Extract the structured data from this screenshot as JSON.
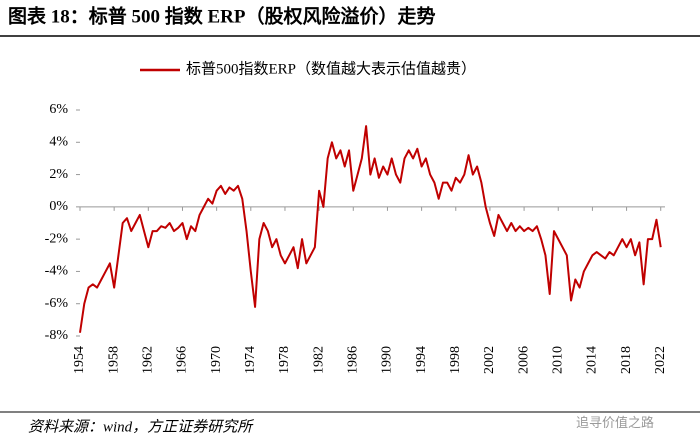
{
  "title": "图表 18：标普 500 指数 ERP（股权风险溢价）走势",
  "source": "资料来源：wind，方正证券研究所",
  "watermark": "追寻价值之路",
  "chart_data": {
    "type": "line",
    "xlim": [
      1954,
      2022.5
    ],
    "xticks": [
      1954,
      1958,
      1962,
      1966,
      1970,
      1974,
      1978,
      1982,
      1986,
      1990,
      1994,
      1998,
      2002,
      2006,
      2010,
      2014,
      2018,
      2022
    ],
    "ylim": [
      -8,
      6
    ],
    "yticks": [
      {
        "value": -8,
        "label": "-8%"
      },
      {
        "value": -6,
        "label": "-6%"
      },
      {
        "value": -4,
        "label": "-4%"
      },
      {
        "value": -2,
        "label": "-2%"
      },
      {
        "value": 0,
        "label": "0%"
      },
      {
        "value": 2,
        "label": "2%"
      },
      {
        "value": 4,
        "label": "4%"
      },
      {
        "value": 6,
        "label": "6%"
      }
    ],
    "x": [
      1954,
      1954.5,
      1955,
      1955.5,
      1956,
      1956.5,
      1957,
      1957.5,
      1958,
      1958.5,
      1959,
      1959.5,
      1960,
      1960.5,
      1961,
      1961.5,
      1962,
      1962.5,
      1963,
      1963.5,
      1964,
      1964.5,
      1965,
      1965.5,
      1966,
      1966.5,
      1967,
      1967.5,
      1968,
      1968.5,
      1969,
      1969.5,
      1970,
      1970.5,
      1971,
      1971.5,
      1972,
      1972.5,
      1973,
      1973.5,
      1974,
      1974.5,
      1975,
      1975.5,
      1976,
      1976.5,
      1977,
      1977.5,
      1978,
      1978.5,
      1979,
      1979.5,
      1980,
      1980.5,
      1981,
      1981.5,
      1982,
      1982.5,
      1983,
      1983.5,
      1984,
      1984.5,
      1985,
      1985.5,
      1986,
      1986.5,
      1987,
      1987.5,
      1988,
      1988.5,
      1989,
      1989.5,
      1990,
      1990.5,
      1991,
      1991.5,
      1992,
      1992.5,
      1993,
      1993.5,
      1994,
      1994.5,
      1995,
      1995.5,
      1996,
      1996.5,
      1997,
      1997.5,
      1998,
      1998.5,
      1999,
      1999.5,
      2000,
      2000.5,
      2001,
      2001.5,
      2002,
      2002.5,
      2003,
      2003.5,
      2004,
      2004.5,
      2005,
      2005.5,
      2006,
      2006.5,
      2007,
      2007.5,
      2008,
      2008.5,
      2009,
      2009.5,
      2010,
      2010.5,
      2011,
      2011.5,
      2012,
      2012.5,
      2013,
      2013.5,
      2014,
      2014.5,
      2015,
      2015.5,
      2016,
      2016.5,
      2017,
      2017.5,
      2018,
      2018.5,
      2019,
      2019.5,
      2020,
      2020.5,
      2021,
      2021.5,
      2022
    ],
    "series": [
      {
        "name": "标普500指数ERP（数值越大表示估值越贵）",
        "color": "#c00000",
        "values": [
          -7.8,
          -6,
          -5,
          -4.8,
          -5,
          -4.5,
          -4,
          -3.5,
          -5,
          -3,
          -1,
          -0.7,
          -1.5,
          -1,
          -0.5,
          -1.5,
          -2.5,
          -1.5,
          -1.5,
          -1.2,
          -1.3,
          -1,
          -1.5,
          -1.3,
          -1,
          -2,
          -1.2,
          -1.5,
          -0.5,
          0,
          0.5,
          0.2,
          1,
          1.3,
          0.8,
          1.2,
          1,
          1.3,
          0.5,
          -1.5,
          -4,
          -6.2,
          -2,
          -1,
          -1.5,
          -2.5,
          -2,
          -3,
          -3.5,
          -3,
          -2.5,
          -3.8,
          -2,
          -3.5,
          -3,
          -2.5,
          1,
          0,
          3,
          4,
          3,
          3.5,
          2.5,
          3.5,
          1,
          2,
          3,
          5,
          2,
          3,
          1.8,
          2.5,
          2,
          3,
          2,
          1.5,
          3,
          3.5,
          3,
          3.6,
          2.5,
          3,
          2,
          1.5,
          0.5,
          1.5,
          1.5,
          1,
          1.8,
          1.5,
          2,
          3.2,
          2,
          2.5,
          1.5,
          0,
          -1,
          -1.8,
          -0.5,
          -1,
          -1.5,
          -1,
          -1.5,
          -1.2,
          -1.5,
          -1.3,
          -1.5,
          -1.2,
          -2,
          -3,
          -5.4,
          -1.5,
          -2,
          -2.5,
          -3,
          -5.8,
          -4.5,
          -5,
          -4,
          -3.5,
          -3,
          -2.8,
          -3,
          -3.2,
          -2.8,
          -3,
          -2.5,
          -2,
          -2.5,
          -2,
          -3,
          -2.2,
          -4.8,
          -2,
          -2,
          -0.8,
          -2.5
        ]
      }
    ]
  }
}
